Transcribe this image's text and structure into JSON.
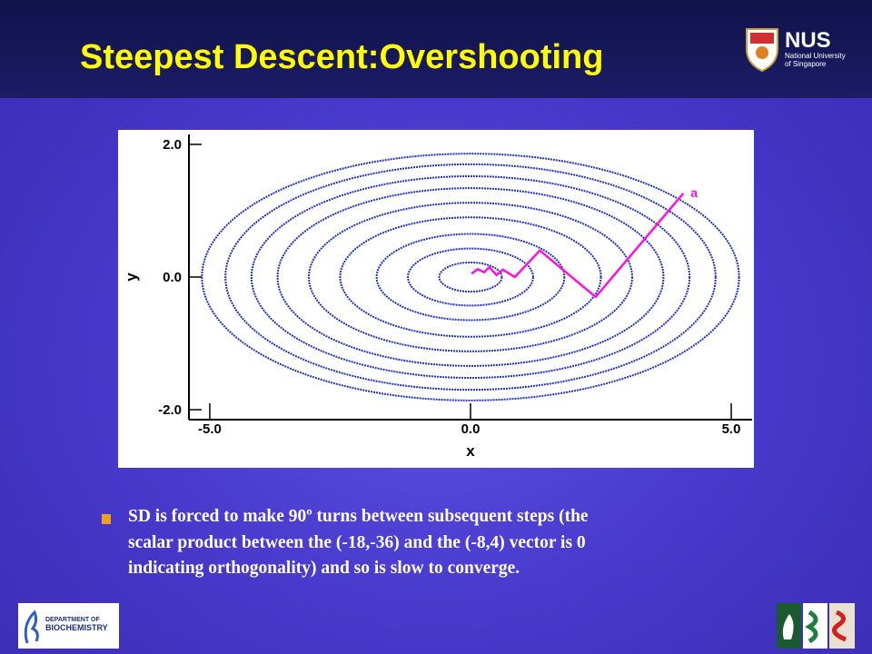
{
  "slide": {
    "title": "Steepest Descent:Overshooting",
    "bullet": [
      "SD is forced to make 90º turns between subsequent steps (the",
      "scalar product between the (-18,-36) and the (-8,4) vector is 0",
      "indicating orthogonality) and so is slow to converge."
    ],
    "logo_nus": "NUS",
    "logo_nus_sub": [
      "National University",
      "of Singapore"
    ],
    "logo_dept": [
      "DEPARTMENT OF",
      "BIOCHEMISTRY"
    ]
  },
  "chart_data": {
    "type": "contour",
    "xlabel": "x",
    "ylabel": "y",
    "xlim": [
      -5.4,
      5.4
    ],
    "ylim": [
      -2.15,
      2.15
    ],
    "xticks": [
      {
        "value": -5,
        "label": "-5.0"
      },
      {
        "value": 0,
        "label": "0.0"
      },
      {
        "value": 5,
        "label": "5.0"
      }
    ],
    "yticks": [
      {
        "value": -2,
        "label": "-2.0"
      },
      {
        "value": 0,
        "label": "0.0"
      },
      {
        "value": 2,
        "label": "2.0"
      }
    ],
    "contour_color": "#2233c4",
    "contours": [
      {
        "rx": 0.6,
        "ry": 0.22
      },
      {
        "rx": 1.2,
        "ry": 0.43
      },
      {
        "rx": 1.8,
        "ry": 0.65
      },
      {
        "rx": 2.5,
        "ry": 0.9
      },
      {
        "rx": 3.1,
        "ry": 1.12
      },
      {
        "rx": 3.7,
        "ry": 1.34
      },
      {
        "rx": 4.2,
        "ry": 1.52
      },
      {
        "rx": 4.7,
        "ry": 1.7
      },
      {
        "rx": 5.15,
        "ry": 1.86
      }
    ],
    "series": [
      {
        "name": "a",
        "color": "#ff10e0",
        "x": [
          4.08,
          2.4,
          1.33,
          0.85,
          0.62,
          0.5,
          0.36,
          0.26,
          0.14,
          0.02
        ],
        "values": [
          1.26,
          -0.3,
          0.4,
          0.0,
          0.11,
          0.03,
          0.15,
          0.07,
          0.12,
          0.05
        ]
      }
    ]
  }
}
